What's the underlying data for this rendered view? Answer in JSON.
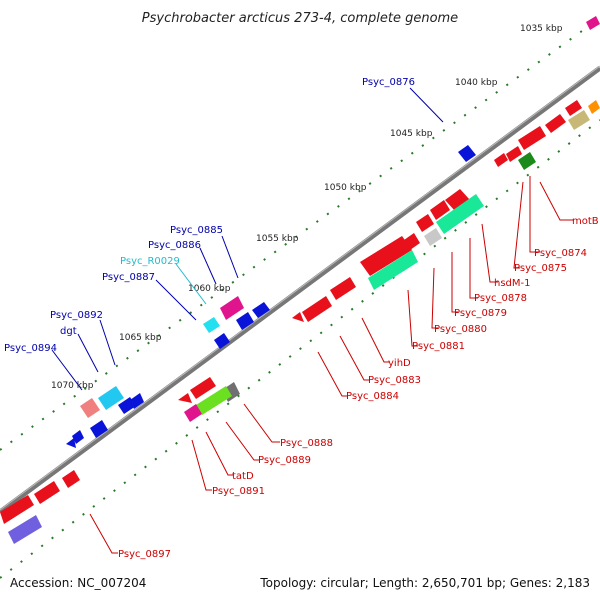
{
  "title": "Psychrobacter arcticus 273-4, complete genome",
  "accession": "Accession: NC_007204",
  "topology": "Topology: circular; Length: 2,650,701 bp; Genes: 2,183",
  "colors": {
    "backbone": "#777777",
    "ticks": "#2a7a2a",
    "forward_label": "#0000aa",
    "reverse_label": "#cc0000",
    "rna_label": "#22bbcc",
    "red_gene": "#e8101a",
    "blue_gene": "#0a14d8"
  },
  "scale_ticks": [
    "1035 kbp",
    "1040 kbp",
    "1045 kbp",
    "1050 kbp",
    "1055 kbp",
    "1060 kbp",
    "1065 kbp",
    "1070 kbp"
  ],
  "gene_labels": {
    "psyc_0876": "Psyc_0876",
    "psyc_0885": "Psyc_0885",
    "psyc_0886": "Psyc_0886",
    "psyc_r0029": "Psyc_R0029",
    "psyc_0887": "Psyc_0887",
    "psyc_0892": "Psyc_0892",
    "dgt": "dgt",
    "psyc_0894": "Psyc_0894",
    "motb": "motB",
    "psyc_0874": "Psyc_0874",
    "psyc_0875": "Psyc_0875",
    "hsdm1": "hsdM-1",
    "psyc_0878": "Psyc_0878",
    "psyc_0879": "Psyc_0879",
    "psyc_0880": "Psyc_0880",
    "psyc_0881": "Psyc_0881",
    "yihd": "yihD",
    "psyc_0883": "Psyc_0883",
    "psyc_0884": "Psyc_0884",
    "psyc_0888": "Psyc_0888",
    "psyc_0889": "Psyc_0889",
    "tatd": "tatD",
    "psyc_0891": "Psyc_0891",
    "psyc_0897": "Psyc_0897"
  }
}
